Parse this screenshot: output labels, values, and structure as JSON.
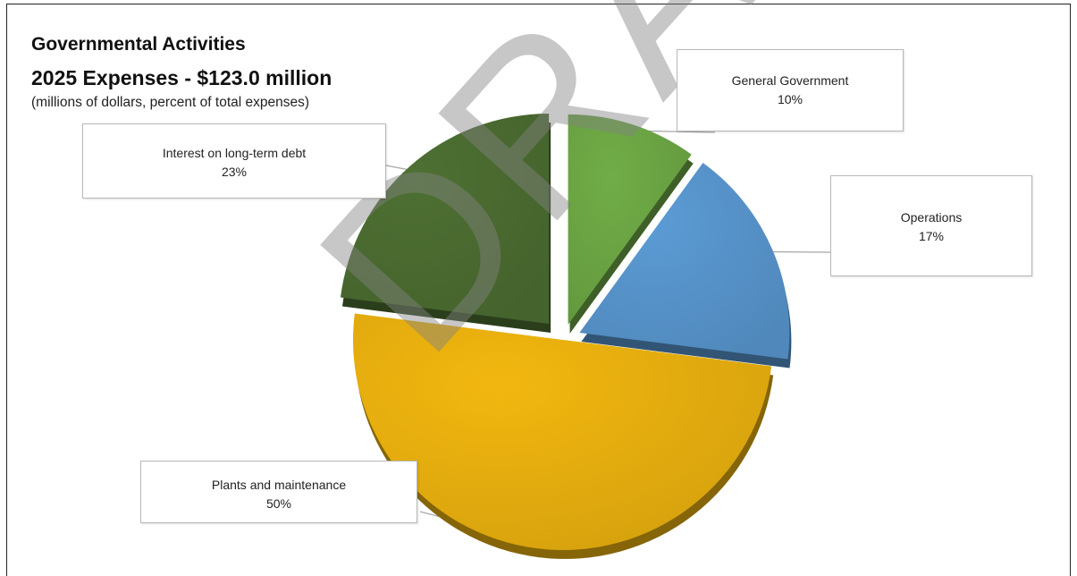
{
  "chart_data": {
    "type": "pie",
    "title_line1": "Governmental Activities",
    "title_line2": "2025 Expenses - $123.0 million",
    "subtitle": "(millions of dollars, percent of total expenses)",
    "slices": [
      {
        "label": "General Government",
        "percent_label": "10%",
        "value": 10,
        "color": "#70AD47"
      },
      {
        "label": "Operations",
        "percent_label": "17%",
        "value": 17,
        "color": "#5B9BD5"
      },
      {
        "label": "Plants and maintenance",
        "percent_label": "50%",
        "value": 50,
        "color": "#F2B70F"
      },
      {
        "label": "Interest on long-term debt",
        "percent_label": "23%",
        "value": 23,
        "color": "#4E7033"
      }
    ]
  },
  "watermark": "DRAFT"
}
